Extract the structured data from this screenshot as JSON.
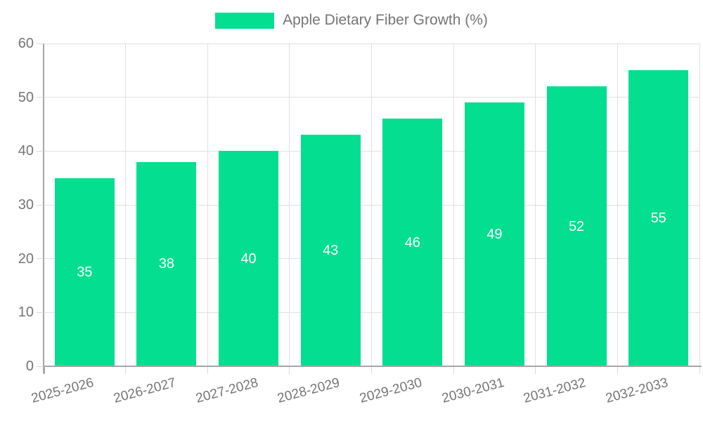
{
  "legend": {
    "label": "Apple Dietary Fiber Growth (%)"
  },
  "chart_data": {
    "type": "bar",
    "title": "Apple Dietary Fiber Growth (%)",
    "categories": [
      "2025-2026",
      "2026-2027",
      "2027-2028",
      "2028-2029",
      "2029-2030",
      "2030-2031",
      "2031-2032",
      "2032-2033"
    ],
    "series": [
      {
        "name": "Apple Dietary Fiber Growth (%)",
        "values": [
          35,
          38,
          40,
          43,
          46,
          49,
          52,
          55
        ]
      }
    ],
    "xlabel": "",
    "ylabel": "",
    "ylim": [
      0,
      60
    ],
    "y_ticks": [
      0,
      10,
      20,
      30,
      40,
      50,
      60
    ],
    "grid": true,
    "legend_position": "top-center",
    "value_labels": "inside-center",
    "x_tick_rotation_deg": -15
  },
  "colors": {
    "bar": "#03DE90",
    "grid": "#e0e0e0",
    "axis": "#a6a6a6",
    "tick": "#d9d9d9",
    "text": "#757575",
    "value_label": "#ffffff",
    "background": "#ffffff"
  }
}
